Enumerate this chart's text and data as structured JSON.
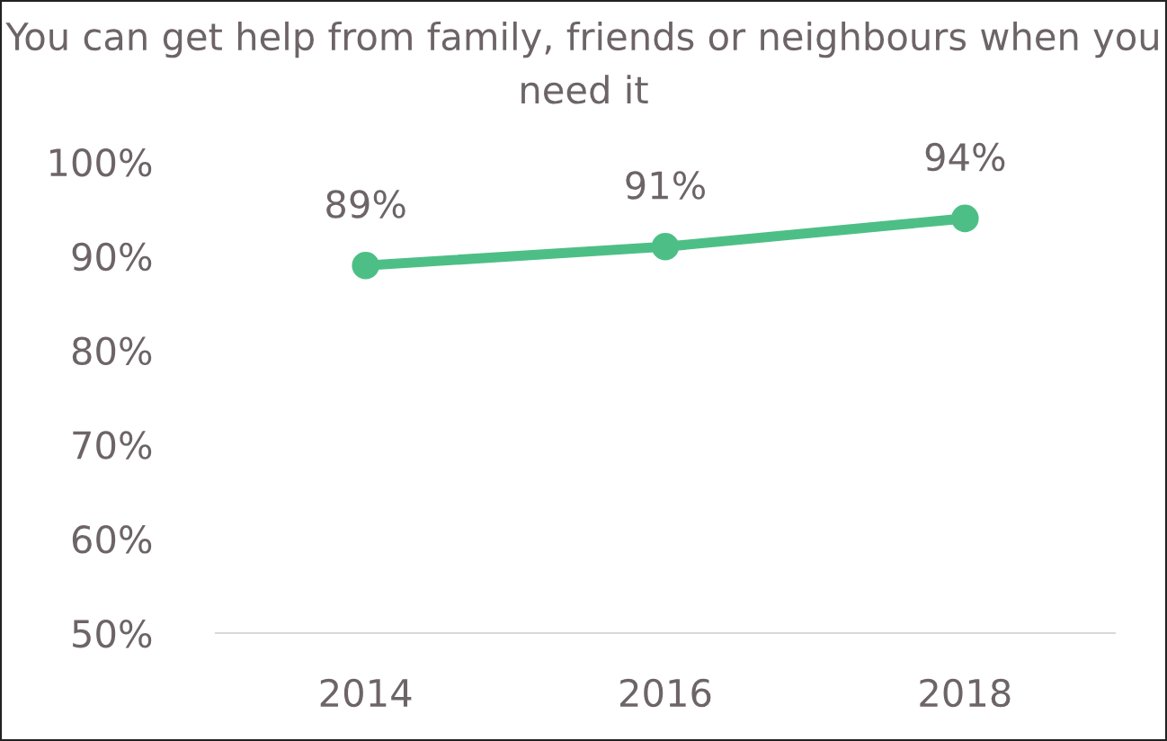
{
  "chart_data": {
    "type": "line",
    "title": "You can get help from family, friends or neighbours when you need it",
    "categories": [
      "2014",
      "2016",
      "2018"
    ],
    "series": [
      {
        "color": "#4dbf86",
        "values": [
          89,
          91,
          94
        ],
        "value_labels": [
          "89%",
          "91%",
          "94%"
        ]
      }
    ],
    "ylim": [
      50,
      100
    ],
    "yticks": [
      {
        "value": 50,
        "label": "50%"
      },
      {
        "value": 60,
        "label": "60%"
      },
      {
        "value": 70,
        "label": "70%"
      },
      {
        "value": 80,
        "label": "80%"
      },
      {
        "value": 90,
        "label": "90%"
      },
      {
        "value": 100,
        "label": "100%"
      }
    ],
    "grid": false,
    "legend": false,
    "marker": "circle",
    "line_style": "solid"
  }
}
